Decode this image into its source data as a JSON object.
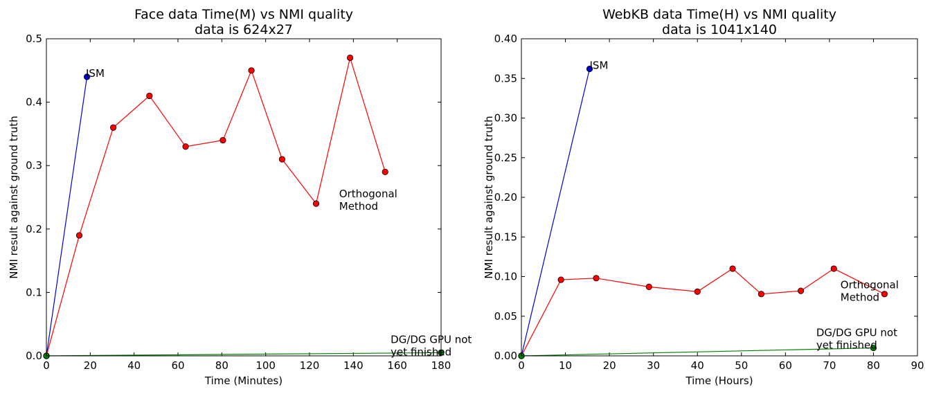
{
  "chart_data": [
    {
      "type": "line",
      "title": "Face data Time(M) vs NMI quality",
      "subtitle": "data is 624x27",
      "xlabel": "Time (Minutes)",
      "ylabel": "NMI result against ground truth",
      "xlim": [
        0,
        180
      ],
      "ylim": [
        0,
        0.5
      ],
      "xticks": [
        0,
        20,
        40,
        60,
        80,
        100,
        120,
        140,
        160,
        180
      ],
      "yticks": [
        0.0,
        0.1,
        0.2,
        0.3,
        0.4,
        0.5
      ],
      "xtick_labels": [
        "0",
        "20",
        "40",
        "60",
        "80",
        "100",
        "120",
        "140",
        "160",
        "180"
      ],
      "ytick_labels": [
        "0.0",
        "0.1",
        "0.2",
        "0.3",
        "0.4",
        "0.5"
      ],
      "grid": false,
      "legend": "none",
      "series": [
        {
          "key": "ism",
          "label": "ISM",
          "color": "#0000cc",
          "x": [
            0,
            18.5
          ],
          "y": [
            0,
            0.44
          ]
        },
        {
          "key": "orthogonal",
          "label": "Orthogonal\nMethod",
          "color": "#ff0000",
          "x": [
            0,
            15,
            30.5,
            47,
            63.5,
            80.5,
            93.5,
            107.5,
            123,
            138.5,
            154.5
          ],
          "y": [
            0,
            0.19,
            0.36,
            0.41,
            0.33,
            0.34,
            0.45,
            0.31,
            0.24,
            0.47,
            0.29
          ]
        },
        {
          "key": "dg",
          "label": "DG/DG GPU not\nyet finished",
          "color": "#008000",
          "x": [
            0,
            180
          ],
          "y": [
            0,
            0.005
          ]
        }
      ],
      "annotations": [
        {
          "text": "ISM",
          "x": 18,
          "y": 0.44
        },
        {
          "text": "Orthogonal\nMethod",
          "x": 133.5,
          "y": 0.25
        },
        {
          "text": "DG/DG GPU not\nyet finished",
          "x": 157,
          "y": 0.02
        }
      ]
    },
    {
      "type": "line",
      "title": "WebKB data Time(H) vs NMI quality",
      "subtitle": "data is 1041x140",
      "xlabel": "Time (Hours)",
      "ylabel": "NMI result against ground truth",
      "xlim": [
        0,
        90
      ],
      "ylim": [
        0,
        0.4
      ],
      "xticks": [
        0,
        10,
        20,
        30,
        40,
        50,
        60,
        70,
        80,
        90
      ],
      "yticks": [
        0,
        0.05,
        0.1,
        0.15,
        0.2,
        0.25,
        0.3,
        0.35,
        0.4
      ],
      "xtick_labels": [
        "0",
        "10",
        "20",
        "30",
        "40",
        "50",
        "60",
        "70",
        "80",
        "90"
      ],
      "ytick_labels": [
        "0.00",
        "0.05",
        "0.10",
        "0.15",
        "0.20",
        "0.25",
        "0.30",
        "0.35",
        "0.40"
      ],
      "grid": false,
      "legend": "none",
      "series": [
        {
          "key": "ism",
          "label": "ISM",
          "color": "#0000cc",
          "x": [
            0,
            15.5
          ],
          "y": [
            0,
            0.362
          ]
        },
        {
          "key": "orthogonal",
          "label": "Orthogonal\nMethod",
          "color": "#ff0000",
          "x": [
            0,
            9,
            17,
            29,
            40,
            48,
            54.5,
            63.5,
            71,
            82.5
          ],
          "y": [
            0,
            0.096,
            0.098,
            0.087,
            0.081,
            0.11,
            0.078,
            0.082,
            0.11,
            0.078
          ]
        },
        {
          "key": "dg",
          "label": "DG/DG GPU not\nyet finished",
          "color": "#008000",
          "x": [
            0,
            80
          ],
          "y": [
            0,
            0.01
          ]
        }
      ],
      "annotations": [
        {
          "text": "ISM",
          "x": 15.5,
          "y": 0.362
        },
        {
          "text": "Orthogonal\nMethod",
          "x": 72.5,
          "y": 0.085
        },
        {
          "text": "DG/DG GPU not\nyet finished",
          "x": 67,
          "y": 0.025
        }
      ]
    }
  ]
}
